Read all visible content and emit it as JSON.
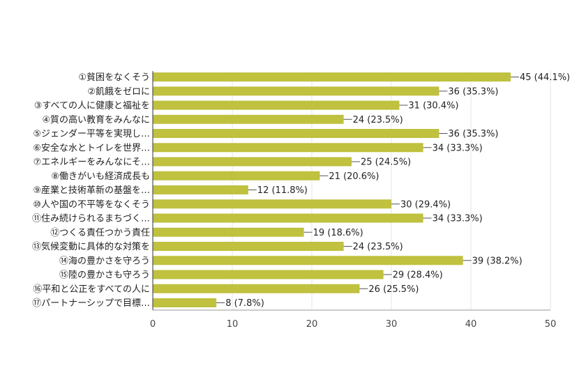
{
  "chart_data": {
    "type": "bar",
    "orientation": "horizontal",
    "categories": [
      "①貧困をなくそう",
      "②飢餓をゼロに",
      "③すべての人に健康と福祉を",
      "④質の高い教育をみんなに",
      "⑤ジェンダー平等を実現し…",
      "⑥安全な水とトイレを世界…",
      "⑦エネルギーをみんなにそ…",
      "⑧働きがいも経済成長も",
      "⑨産業と技術革新の基盤を…",
      "⑩人や国の不平等をなくそう",
      "⑪住み続けられるまちづく…",
      "⑫つくる責任つかう責任",
      "⑬気候変動に具体的な対策を",
      "⑭海の豊かさを守ろう",
      "⑮陸の豊かさも守ろう",
      "⑯平和と公正をすべての人に",
      "⑰パートナーシップで目標…"
    ],
    "values": [
      45,
      36,
      31,
      24,
      36,
      34,
      25,
      21,
      12,
      30,
      34,
      19,
      24,
      39,
      29,
      26,
      8
    ],
    "data_labels": [
      "45 (44.1%)",
      "36 (35.3%)",
      "31 (30.4%)",
      "24 (23.5%)",
      "36 (35.3%)",
      "34 (33.3%)",
      "25 (24.5%)",
      "21 (20.6%)",
      "12 (11.8%)",
      "30 (29.4%)",
      "34 (33.3%)",
      "19 (18.6%)",
      "24 (23.5%)",
      "39 (38.2%)",
      "29 (28.4%)",
      "26 (25.5%)",
      "8 (7.8%)"
    ],
    "xlim": [
      0,
      50
    ],
    "xticks": [
      "0",
      "10",
      "20",
      "30",
      "40",
      "50"
    ],
    "title": "",
    "xlabel": "",
    "ylabel": "",
    "grid": true,
    "legend": "none",
    "bar_color": "#bfc13f",
    "grid_color": "#e6e6e6",
    "axis_color": "#333333"
  }
}
